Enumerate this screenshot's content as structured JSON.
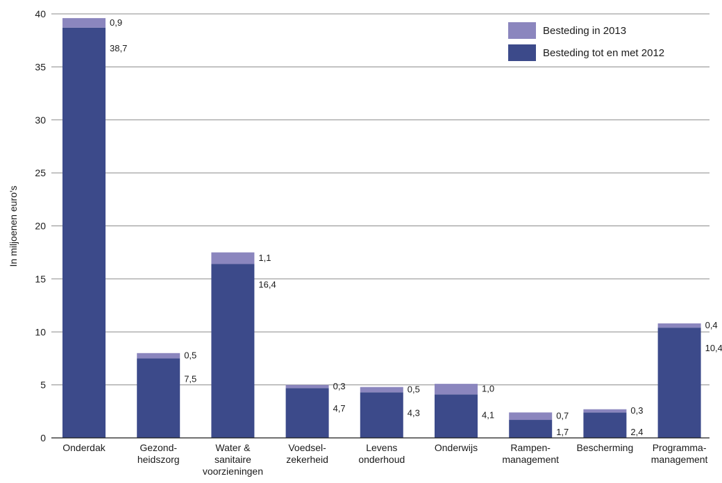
{
  "chart_data": {
    "type": "bar",
    "stacked": true,
    "categories": [
      [
        "Onderdak"
      ],
      [
        "Gezond-",
        "heidszorg"
      ],
      [
        "Water &",
        "sanitaire",
        "voorzieningen"
      ],
      [
        "Voedsel-",
        "zekerheid"
      ],
      [
        "Levens",
        "onderhoud"
      ],
      [
        "Onderwijs"
      ],
      [
        "Rampen-",
        "management"
      ],
      [
        "Bescherming"
      ],
      [
        "Programma-",
        "management"
      ]
    ],
    "series": [
      {
        "name": "Besteding tot en met 2012",
        "color": "#3c4a8a",
        "values": [
          38.7,
          7.5,
          16.4,
          4.7,
          4.3,
          4.1,
          1.7,
          2.4,
          10.4
        ],
        "labels": [
          "38,7",
          "7,5",
          "16,4",
          "4,7",
          "4,3",
          "4,1",
          "1,7",
          "2,4",
          "10,4"
        ]
      },
      {
        "name": "Besteding in 2013",
        "color": "#8b86be",
        "values": [
          0.9,
          0.5,
          1.1,
          0.3,
          0.5,
          1.0,
          0.7,
          0.3,
          0.4
        ],
        "labels": [
          "0,9",
          "0,5",
          "1,1",
          "0,3",
          "0,5",
          "1,0",
          "0,7",
          "0,3",
          "0,4"
        ]
      }
    ],
    "legend_order": [
      "Besteding in 2013",
      "Besteding tot en met 2012"
    ],
    "legend_position": "top-right",
    "ylabel": "In miljoenen euro's",
    "xlabel": "",
    "ylim": [
      0,
      40
    ],
    "yticks": [
      0,
      5,
      10,
      15,
      20,
      25,
      30,
      35,
      40
    ],
    "grid": true
  }
}
